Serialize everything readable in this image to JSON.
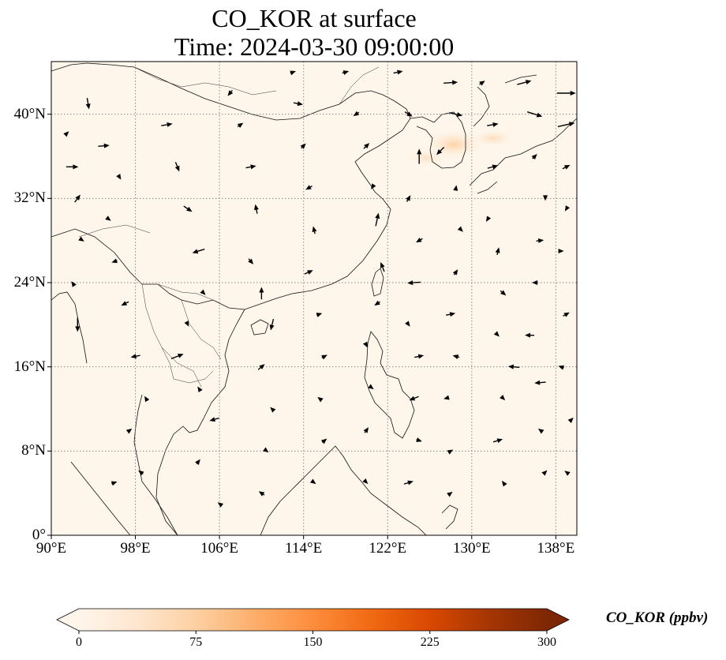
{
  "title": {
    "line1": "CO_KOR at surface",
    "line2": "Time: 2024-03-30 09:00:00"
  },
  "map": {
    "lon_range": [
      90,
      140
    ],
    "lat_range": [
      0,
      45
    ],
    "background_color": "#fef6eb",
    "grid_color": "#888888",
    "coast_color": "#111111",
    "hotspot_color": "#fdd9a8"
  },
  "axes": {
    "lon_ticks": [
      {
        "value": 90,
        "label": "90°E"
      },
      {
        "value": 98,
        "label": "98°E"
      },
      {
        "value": 106,
        "label": "106°E"
      },
      {
        "value": 114,
        "label": "114°E"
      },
      {
        "value": 122,
        "label": "122°E"
      },
      {
        "value": 130,
        "label": "130°E"
      },
      {
        "value": 138,
        "label": "138°E"
      }
    ],
    "lat_ticks": [
      {
        "value": 0,
        "label": "0°"
      },
      {
        "value": 8,
        "label": "8°N"
      },
      {
        "value": 16,
        "label": "16°N"
      },
      {
        "value": 24,
        "label": "24°N"
      },
      {
        "value": 32,
        "label": "32°N"
      },
      {
        "value": 40,
        "label": "40°N"
      }
    ]
  },
  "colorbar": {
    "label": "CO_KOR (ppbv)",
    "min": 0,
    "max": 300,
    "ticks": [
      {
        "value": 0,
        "label": "0"
      },
      {
        "value": 75,
        "label": "75"
      },
      {
        "value": 150,
        "label": "150"
      },
      {
        "value": 225,
        "label": "225"
      },
      {
        "value": 300,
        "label": "300"
      }
    ],
    "colors": [
      "#fff5eb",
      "#fee6ce",
      "#fdd0a2",
      "#fdae6b",
      "#fd8d3c",
      "#f16913",
      "#d94801",
      "#a63603",
      "#7f2704"
    ],
    "extend": "both"
  },
  "wind_vectors": [
    [
      91.5,
      38.2,
      0.4,
      0.4
    ],
    [
      92,
      35,
      1.3,
      0
    ],
    [
      92.5,
      32,
      0.6,
      0.8
    ],
    [
      93,
      28,
      0.3,
      -0.2
    ],
    [
      92,
      24,
      -0.2,
      0.3
    ],
    [
      92.5,
      20,
      0,
      -1.5
    ],
    [
      93.5,
      41,
      0.2,
      -1.2
    ],
    [
      95,
      37,
      1.2,
      0.1
    ],
    [
      96.5,
      34,
      0.3,
      -0.5
    ],
    [
      95.5,
      30,
      0.4,
      -0.3
    ],
    [
      96,
      26,
      -0.6,
      -0.2
    ],
    [
      97,
      22,
      -0.8,
      -0.4
    ],
    [
      98,
      17,
      -1,
      -0.2
    ],
    [
      99,
      13,
      -0.3,
      0.5
    ],
    [
      97.5,
      10,
      0.4,
      0.3
    ],
    [
      98.5,
      6,
      -0.5,
      0.4
    ],
    [
      96,
      5,
      0.6,
      0.2
    ],
    [
      101,
      39,
      1.2,
      0.2
    ],
    [
      102,
      35,
      0.4,
      -1
    ],
    [
      103,
      31,
      0.9,
      -0.6
    ],
    [
      104,
      27,
      -1.3,
      -0.4
    ],
    [
      104.5,
      23,
      0.4,
      -0.4
    ],
    [
      103,
      20,
      0.2,
      -0.4
    ],
    [
      102,
      17,
      1.3,
      0.5
    ],
    [
      104,
      14,
      -0.2,
      0.3
    ],
    [
      105.5,
      11,
      -1,
      -0.3
    ],
    [
      104,
      7,
      0.4,
      0.5
    ],
    [
      106,
      3,
      -0.4,
      0.3
    ],
    [
      107,
      42,
      -0.5,
      -0.6
    ],
    [
      108,
      39,
      0.6,
      0.4
    ],
    [
      109,
      35,
      1.1,
      0.2
    ],
    [
      109.5,
      31,
      -0.2,
      1
    ],
    [
      109,
      26,
      0.5,
      -0.6
    ],
    [
      110,
      23,
      0,
      1.3
    ],
    [
      111,
      20,
      -0.3,
      -1.2
    ],
    [
      110,
      16,
      0.7,
      0.6
    ],
    [
      111,
      12,
      -0.4,
      0.4
    ],
    [
      110.5,
      8,
      0.4,
      -0.3
    ],
    [
      110,
      4,
      -0.6,
      0.4
    ],
    [
      113,
      44,
      0.6,
      0.2
    ],
    [
      113.5,
      41,
      1,
      -0.2
    ],
    [
      114,
      37,
      0.5,
      0.5
    ],
    [
      114.5,
      33,
      -0.7,
      -0.4
    ],
    [
      115,
      29,
      -0.2,
      0.8
    ],
    [
      114.5,
      25,
      0.9,
      0.4
    ],
    [
      115.5,
      21,
      0.6,
      0.2
    ],
    [
      116,
      17,
      0.6,
      0.3
    ],
    [
      115.5,
      13,
      -0.4,
      0.3
    ],
    [
      116,
      9,
      0.5,
      0.4
    ],
    [
      115,
      5,
      0.4,
      -0.3
    ],
    [
      118,
      44,
      0.7,
      0.2
    ],
    [
      119,
      40,
      -0.6,
      -0.4
    ],
    [
      120,
      37,
      0.6,
      0.6
    ],
    [
      120.5,
      33,
      -0.2,
      -0.3
    ],
    [
      121,
      30,
      0.3,
      1.4
    ],
    [
      121.5,
      25.5,
      -0.4,
      1
    ],
    [
      121,
      22,
      -0.6,
      -0.4
    ],
    [
      120,
      18,
      0.2,
      -0.4
    ],
    [
      120.5,
      14,
      0.4,
      -0.3
    ],
    [
      120,
      10,
      0.4,
      0.6
    ],
    [
      120,
      5,
      0.3,
      -0.3
    ],
    [
      123,
      44,
      1,
      0.2
    ],
    [
      124,
      40,
      0.8,
      -0.5
    ],
    [
      125,
      36,
      0,
      1.6
    ],
    [
      124,
      32,
      0.4,
      0.7
    ],
    [
      125,
      28,
      -0.7,
      -0.4
    ],
    [
      124.5,
      24,
      -1.4,
      -0.1
    ],
    [
      124,
      20,
      0.3,
      -0.4
    ],
    [
      125,
      17,
      1,
      0.2
    ],
    [
      124.5,
      13,
      -1,
      -0.4
    ],
    [
      125,
      9,
      0.6,
      -0.2
    ],
    [
      124,
      5,
      1,
      0.3
    ],
    [
      128,
      43,
      1.5,
      0.1
    ],
    [
      128.5,
      40,
      1.4,
      -0.3
    ],
    [
      127,
      36.5,
      -0.8,
      -0.8
    ],
    [
      128.5,
      33,
      0.1,
      0.6
    ],
    [
      129,
      29,
      0.4,
      -0.4
    ],
    [
      128.5,
      25,
      0.4,
      0.6
    ],
    [
      128,
      21,
      1,
      0.2
    ],
    [
      128.5,
      17,
      -0.7,
      0.2
    ],
    [
      127.5,
      13,
      -0.4,
      -0.1
    ],
    [
      128,
      8,
      0.5,
      0.3
    ],
    [
      128,
      4,
      0.4,
      0.3
    ],
    [
      131,
      43,
      0.6,
      0.4
    ],
    [
      132,
      39,
      1.2,
      0.2
    ],
    [
      132,
      35,
      1.1,
      0.3
    ],
    [
      131.5,
      30,
      -0.3,
      -0.5
    ],
    [
      132.5,
      27,
      0.2,
      0.8
    ],
    [
      133,
      23,
      0.6,
      -0.5
    ],
    [
      132.5,
      19,
      0.3,
      -0.3
    ],
    [
      134,
      16,
      -1.2,
      0.1
    ],
    [
      133,
      13,
      0.4,
      -0.4
    ],
    [
      132.5,
      9,
      1,
      0.3
    ],
    [
      133,
      5,
      -0.3,
      0.4
    ],
    [
      135,
      43,
      1.5,
      0.4
    ],
    [
      136,
      40,
      1.6,
      -0.5
    ],
    [
      136,
      36,
      0.5,
      0.5
    ],
    [
      137,
      32,
      0,
      -0.5
    ],
    [
      136.5,
      28,
      0.8,
      0.1
    ],
    [
      136,
      24,
      -0.6,
      0
    ],
    [
      135.5,
      19,
      -1,
      0
    ],
    [
      136.5,
      14.5,
      -1.2,
      -0.1
    ],
    [
      136.5,
      10,
      -0.4,
      0.3
    ],
    [
      137,
      6,
      0.4,
      0.4
    ],
    [
      139,
      42,
      2,
      0
    ],
    [
      139,
      39,
      1.8,
      0.4
    ],
    [
      139,
      35,
      0.8,
      0.4
    ],
    [
      139,
      31,
      -0.3,
      -0.5
    ],
    [
      138.5,
      27,
      0.6,
      0
    ],
    [
      139,
      21,
      0.7,
      0.4
    ],
    [
      138.5,
      16,
      -0.6,
      0.2
    ],
    [
      139.5,
      11,
      0.4,
      0.4
    ],
    [
      139,
      6,
      -0.4,
      0.3
    ]
  ]
}
